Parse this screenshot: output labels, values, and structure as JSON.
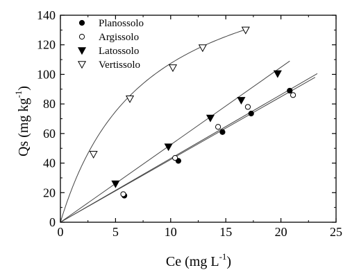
{
  "chart_data": {
    "type": "scatter",
    "xlabel": "Ce (mg L",
    "xlabel_sup": "-1",
    "xlabel_close": ")",
    "ylabel": "Qs (mg kg",
    "ylabel_sup": "-1",
    "ylabel_close": ")",
    "xlim": [
      0,
      25
    ],
    "ylim": [
      0,
      140
    ],
    "x_ticks": [
      0,
      5,
      10,
      15,
      20,
      25
    ],
    "y_ticks": [
      0,
      20,
      40,
      60,
      80,
      100,
      120,
      140
    ],
    "grid": false,
    "legend_position": "top-left",
    "series": [
      {
        "name": "Planossolo",
        "marker": "circle-filled",
        "x": [
          5.8,
          10.7,
          14.7,
          17.3,
          20.8
        ],
        "y": [
          18,
          41.5,
          61,
          73.5,
          89
        ],
        "fit": {
          "kind": "linear",
          "x": [
            0,
            23.1
          ],
          "y": [
            0,
            98
          ]
        }
      },
      {
        "name": "Argissolo",
        "marker": "circle-open",
        "x": [
          5.7,
          10.4,
          14.3,
          17.0,
          21.1
        ],
        "y": [
          19,
          43.5,
          64.5,
          78,
          86
        ],
        "fit": {
          "kind": "linear",
          "x": [
            0,
            23.3
          ],
          "y": [
            0,
            100.5
          ]
        }
      },
      {
        "name": "Latossolo",
        "marker": "triangle-down-filled",
        "x": [
          5.0,
          9.8,
          13.6,
          16.4,
          19.7
        ],
        "y": [
          26,
          51,
          70.5,
          82.5,
          100.5
        ],
        "fit": {
          "kind": "linear",
          "x": [
            0,
            20.8
          ],
          "y": [
            0,
            109
          ]
        }
      },
      {
        "name": "Vertissolo",
        "marker": "triangle-down-open",
        "x": [
          3.0,
          6.3,
          10.2,
          12.9,
          16.8
        ],
        "y": [
          46,
          83.5,
          104.5,
          118,
          130
        ],
        "fit": {
          "kind": "langmuir",
          "qmax": 190,
          "k": 0.13,
          "x_end": 16.8
        }
      }
    ]
  }
}
